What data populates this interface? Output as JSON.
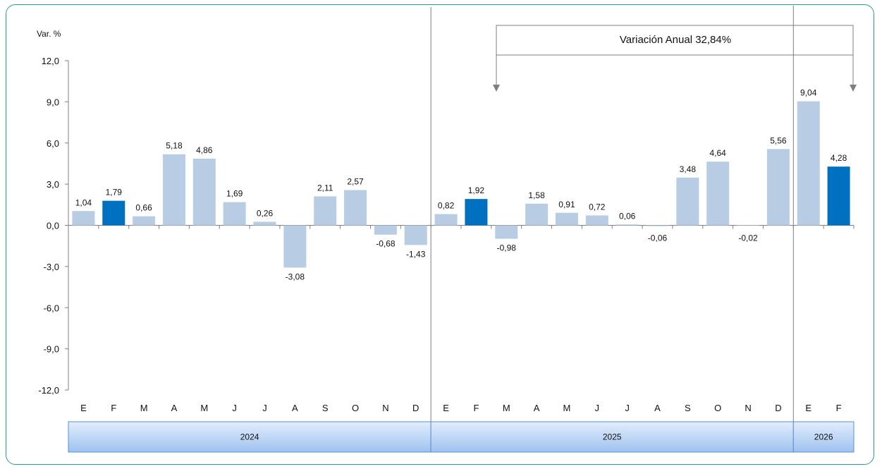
{
  "chart_data": {
    "type": "bar",
    "ylabel": "Var. %",
    "ylim": [
      -12,
      12
    ],
    "yticks": [
      "12,0",
      "9,0",
      "6,0",
      "3,0",
      "0,0",
      "-3,0",
      "-6,0",
      "-9,0",
      "-12,0"
    ],
    "ytick_values": [
      12,
      9,
      6,
      3,
      0,
      -3,
      -6,
      -9,
      -12
    ],
    "categories": [
      "E",
      "F",
      "M",
      "A",
      "M",
      "J",
      "J",
      "A",
      "S",
      "O",
      "N",
      "D",
      "E",
      "F",
      "M",
      "A",
      "M",
      "J",
      "J",
      "A",
      "S",
      "O",
      "N",
      "D",
      "E",
      "F"
    ],
    "values": [
      1.04,
      1.79,
      0.66,
      5.18,
      4.86,
      1.69,
      0.26,
      -3.08,
      2.11,
      2.57,
      -0.68,
      -1.43,
      0.82,
      1.92,
      -0.98,
      1.58,
      0.91,
      0.72,
      0.06,
      -0.06,
      3.48,
      4.64,
      -0.02,
      5.56,
      9.04,
      4.28
    ],
    "value_labels": [
      "1,04",
      "1,79",
      "0,66",
      "5,18",
      "4,86",
      "1,69",
      "0,26",
      "-3,08",
      "2,11",
      "2,57",
      "-0,68",
      "-1,43",
      "0,82",
      "1,92",
      "-0,98",
      "1,58",
      "0,91",
      "0,72",
      "0,06",
      "-0,06",
      "3,48",
      "4,64",
      "-0,02",
      "5,56",
      "9,04",
      "4,28"
    ],
    "highlighted_indices": [
      1,
      13,
      25
    ],
    "years": [
      {
        "label": "2024",
        "months": 12
      },
      {
        "label": "2025",
        "months": 12
      },
      {
        "label": "2026",
        "months": 2
      }
    ],
    "annotation": "Variación Anual  32,84%",
    "grid": false,
    "colors": {
      "bar": "#b8cce4",
      "highlight": "#0070c0",
      "axis": "#7f7f7f"
    }
  }
}
